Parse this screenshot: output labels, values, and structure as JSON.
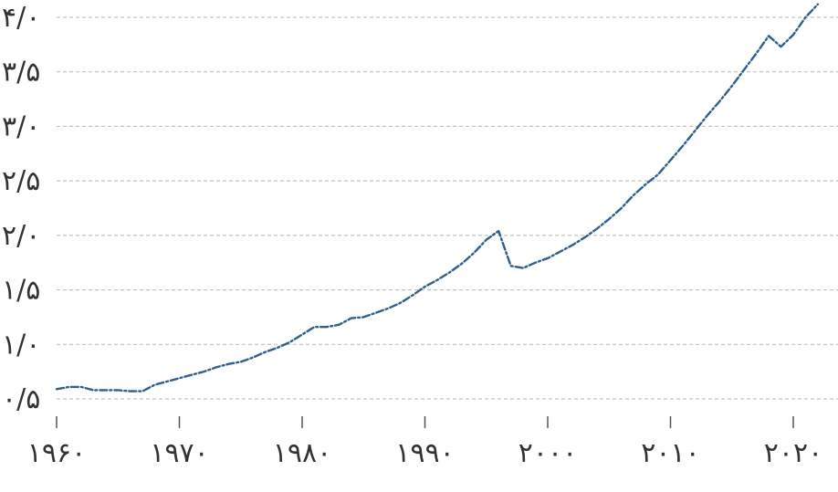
{
  "chart_data": {
    "type": "line",
    "title": "",
    "xlabel": "",
    "ylabel": "",
    "xlim": [
      1960,
      2022
    ],
    "ylim": [
      0.5,
      4.0
    ],
    "grid": "horizontal-dashed",
    "x_ticks": [
      1960,
      1970,
      1980,
      1990,
      2000,
      2010,
      2020
    ],
    "x_tick_labels": [
      "۱۹۶۰",
      "۱۹۷۰",
      "۱۹۸۰",
      "۱۹۹۰",
      "۲۰۰۰",
      "۲۰۱۰",
      "۲۰۲۰"
    ],
    "y_ticks": [
      0.5,
      1.0,
      1.5,
      2.0,
      2.5,
      3.0,
      3.5,
      4.0
    ],
    "y_tick_labels": [
      "۰/۵",
      "۱/۰",
      "۱/۵",
      "۲/۰",
      "۲/۵",
      "۳/۰",
      "۳/۵",
      "۴/۰"
    ],
    "series": [
      {
        "color": "#2f5f8a",
        "x": [
          1960,
          1961,
          1962,
          1963,
          1964,
          1965,
          1966,
          1967,
          1968,
          1969,
          1970,
          1971,
          1972,
          1973,
          1974,
          1975,
          1976,
          1977,
          1978,
          1979,
          1980,
          1981,
          1982,
          1983,
          1984,
          1985,
          1986,
          1987,
          1988,
          1989,
          1990,
          1991,
          1992,
          1993,
          1994,
          1995,
          1996,
          1997,
          1998,
          1999,
          2000,
          2001,
          2002,
          2003,
          2004,
          2005,
          2006,
          2007,
          2008,
          2009,
          2010,
          2011,
          2012,
          2013,
          2014,
          2015,
          2016,
          2017,
          2018,
          2019,
          2020,
          2021,
          2022
        ],
        "y": [
          0.59,
          0.61,
          0.61,
          0.58,
          0.58,
          0.58,
          0.57,
          0.57,
          0.63,
          0.66,
          0.69,
          0.72,
          0.75,
          0.79,
          0.82,
          0.84,
          0.88,
          0.93,
          0.97,
          1.02,
          1.09,
          1.16,
          1.16,
          1.18,
          1.24,
          1.25,
          1.29,
          1.33,
          1.38,
          1.45,
          1.53,
          1.59,
          1.66,
          1.74,
          1.84,
          1.96,
          2.04,
          1.72,
          1.7,
          1.75,
          1.79,
          1.85,
          1.91,
          1.98,
          2.06,
          2.15,
          2.25,
          2.37,
          2.47,
          2.56,
          2.69,
          2.82,
          2.96,
          3.1,
          3.23,
          3.37,
          3.52,
          3.67,
          3.83,
          3.73,
          3.84,
          4.0,
          4.12
        ]
      }
    ]
  }
}
